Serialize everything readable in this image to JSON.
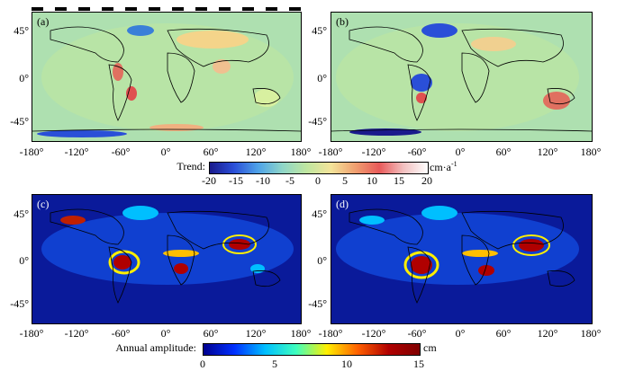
{
  "panels": [
    {
      "label": "(a)"
    },
    {
      "label": "(b)"
    },
    {
      "label": "(c)"
    },
    {
      "label": "(d)"
    }
  ],
  "lat_ticks": [
    "45°",
    "0°",
    "-45°"
  ],
  "lon_ticks": [
    "-180°",
    "-120°",
    "-60°",
    "0°",
    "60°",
    "120°",
    "180°"
  ],
  "trend_colorbar": {
    "title": "Trend:",
    "ticks": [
      "-20",
      "-15",
      "-10",
      "-5",
      "0",
      "5",
      "10",
      "15",
      "20"
    ],
    "unit": "cm·a",
    "unit_sup": "-1"
  },
  "amplitude_colorbar": {
    "title": "Annual amplitude:",
    "ticks": [
      "0",
      "5",
      "10",
      "15"
    ],
    "unit": "cm"
  },
  "colors": {
    "trend_scale": [
      "#1a1a8c",
      "#2a4fd8",
      "#4fa3e8",
      "#8fd6c8",
      "#bfe6a0",
      "#f3e49a",
      "#f0a070",
      "#e85a5a",
      "#f2c0c0",
      "#ffffff"
    ],
    "amplitude_scale": [
      "#00008f",
      "#0030ff",
      "#00bfff",
      "#3fffbf",
      "#ffef00",
      "#ff6000",
      "#b00000",
      "#800000"
    ]
  }
}
